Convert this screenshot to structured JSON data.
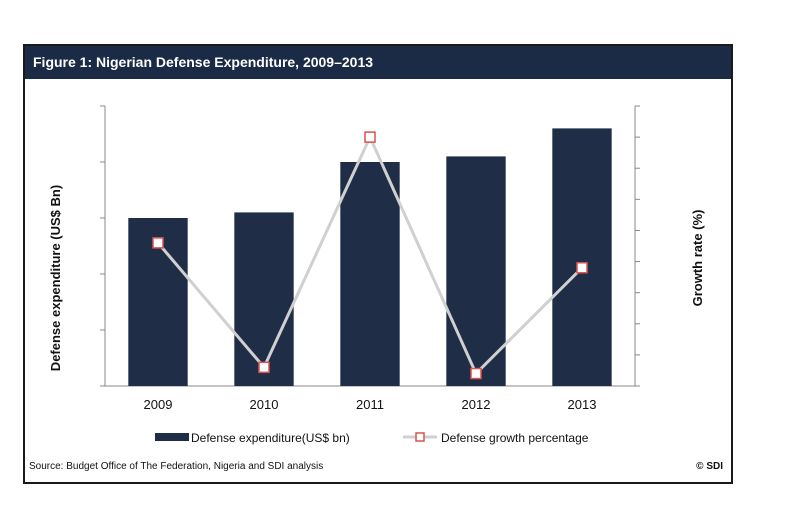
{
  "figure": {
    "title": "Figure 1: Nigerian Defense Expenditure, 2009–2013",
    "source": "Source: Budget Office of The Federation, Nigeria and SDI analysis",
    "copyright": "© SDI"
  },
  "colors": {
    "title_bg": "#1b2a45",
    "bar": "#1f2d47",
    "line": "#d0d0d0",
    "marker_edge": "#d9534f",
    "axis": "#888888"
  },
  "chart_data": {
    "type": "bar",
    "categories": [
      "2009",
      "2010",
      "2011",
      "2012",
      "2013"
    ],
    "series": [
      {
        "name": "Defense expenditure(US$ bn)",
        "kind": "bar",
        "axis": "left",
        "values": [
          3.0,
          3.1,
          4.0,
          4.1,
          4.6
        ]
      },
      {
        "name": "Defense growth percentage",
        "kind": "line",
        "axis": "right",
        "values": [
          4.6,
          0.6,
          8.0,
          0.4,
          3.8
        ]
      }
    ],
    "ylabel": "Defense expenditure (US$ Bn)",
    "y2label": "Growth rate (%)",
    "ylim": [
      0,
      5
    ],
    "y2lim": [
      0,
      9
    ],
    "y_tick_labels_shown": false,
    "grid": false,
    "legend_position": "bottom"
  }
}
